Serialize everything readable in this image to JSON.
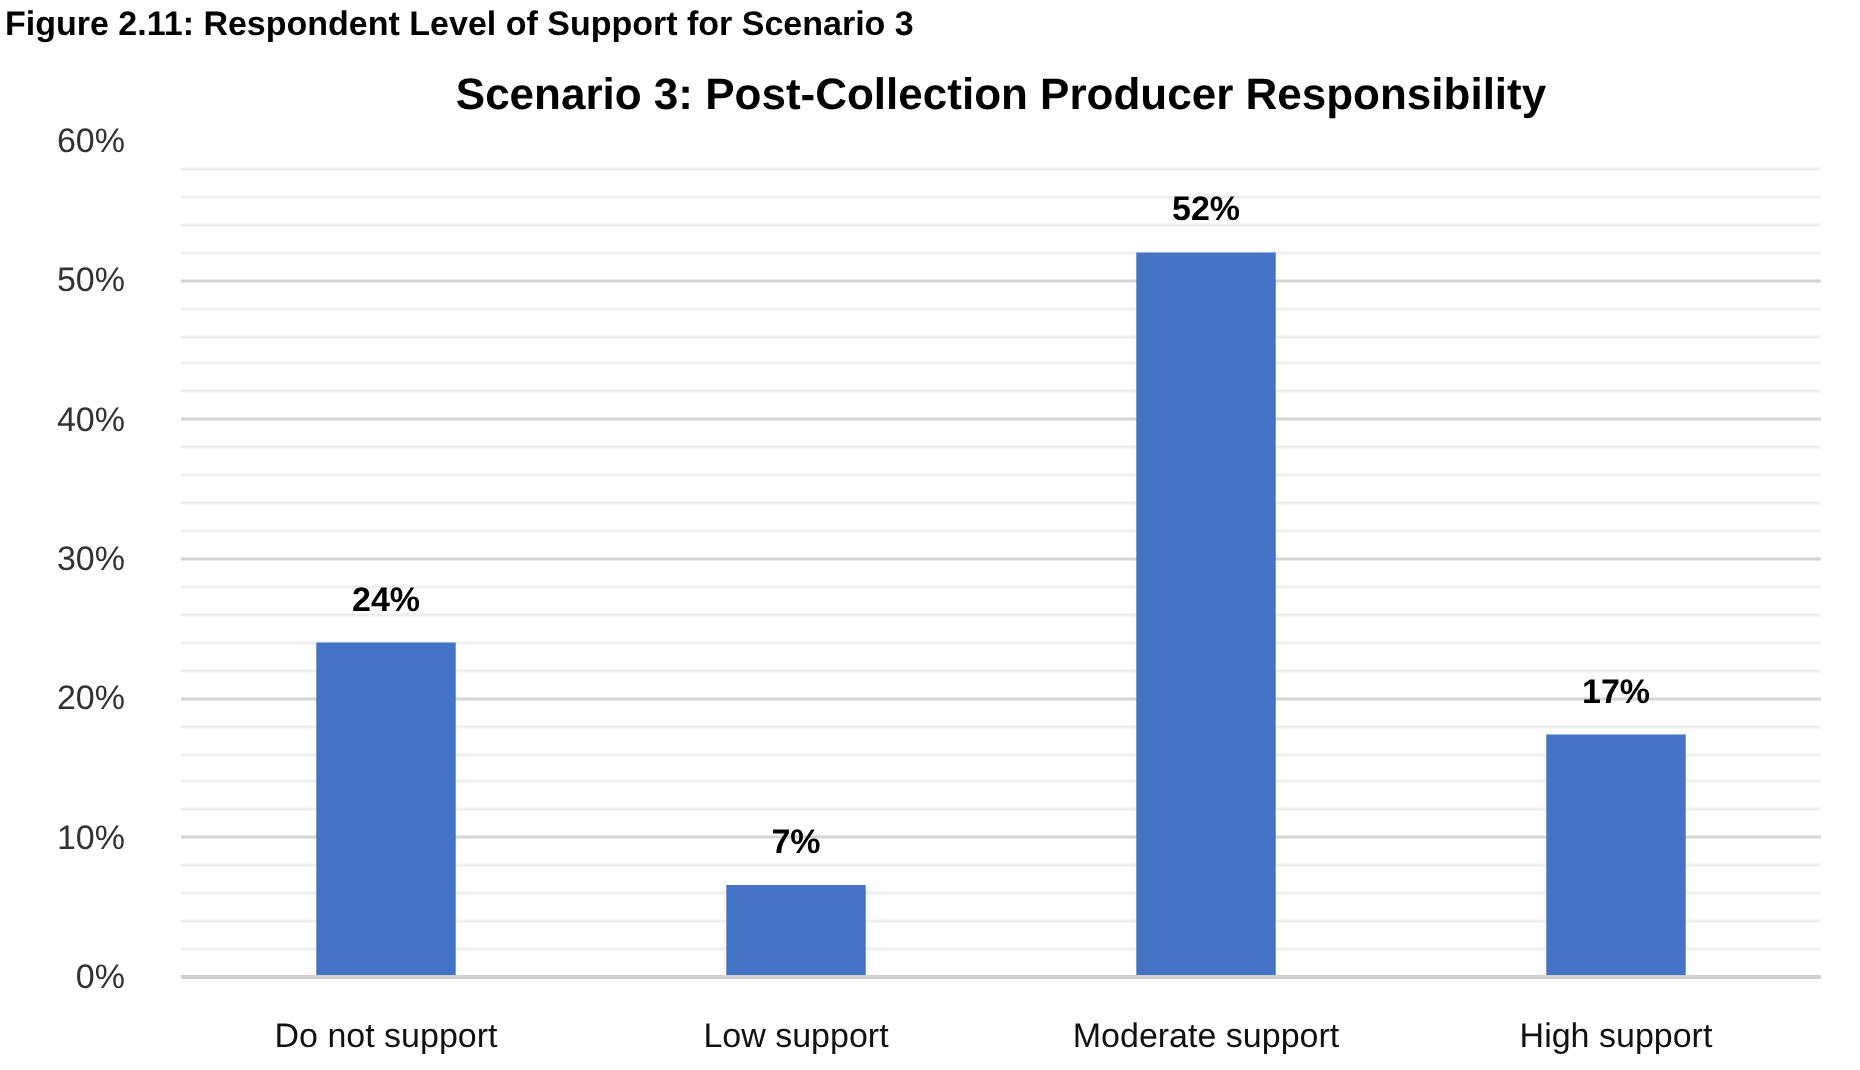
{
  "chart_data": {
    "type": "bar",
    "title": "Scenario 3: Post-Collection Producer Responsibility",
    "annotations": [
      "Figure 2.11: Respondent Level of Support for Scenario 3"
    ],
    "categories": [
      "Do not support",
      "Low support",
      "Moderate support",
      "High support"
    ],
    "values": [
      24,
      6.6,
      52,
      17.4
    ],
    "value_labels": [
      "24%",
      "7%",
      "52%",
      "17%"
    ],
    "color": "#4472c4",
    "ylim": [
      0,
      60
    ],
    "yticks": [
      {
        "value": 0,
        "label": "0%"
      },
      {
        "value": 10,
        "label": "10%"
      },
      {
        "value": 20,
        "label": "20%"
      },
      {
        "value": 30,
        "label": "30%"
      },
      {
        "value": 40,
        "label": "40%"
      },
      {
        "value": 50,
        "label": "50%"
      },
      {
        "value": 60,
        "label": "60%"
      }
    ],
    "grid": "y"
  }
}
